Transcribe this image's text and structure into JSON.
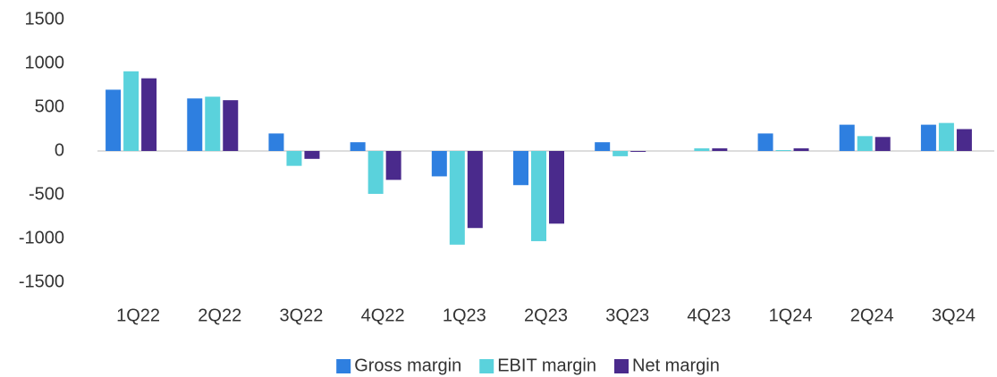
{
  "chart_data": {
    "type": "bar",
    "categories": [
      "1Q22",
      "2Q22",
      "3Q22",
      "4Q22",
      "1Q23",
      "2Q23",
      "3Q23",
      "4Q23",
      "1Q24",
      "2Q24",
      "3Q24"
    ],
    "series": [
      {
        "name": "Gross margin",
        "color": "#2e7fe0",
        "values": [
          700,
          600,
          200,
          100,
          -290,
          -390,
          100,
          0,
          200,
          300,
          300
        ]
      },
      {
        "name": "EBIT margin",
        "color": "#5ad2dc",
        "values": [
          910,
          620,
          -170,
          -490,
          -1070,
          -1030,
          -60,
          30,
          10,
          170,
          320
        ]
      },
      {
        "name": "Net margin",
        "color": "#4a2a8c",
        "values": [
          830,
          580,
          -90,
          -330,
          -880,
          -830,
          -10,
          30,
          30,
          160,
          250
        ]
      }
    ],
    "ylim": [
      -1500,
      1500
    ],
    "yticks": [
      -1500,
      -1000,
      -500,
      0,
      500,
      1000,
      1500
    ],
    "grid": false,
    "legend": "bottom"
  }
}
